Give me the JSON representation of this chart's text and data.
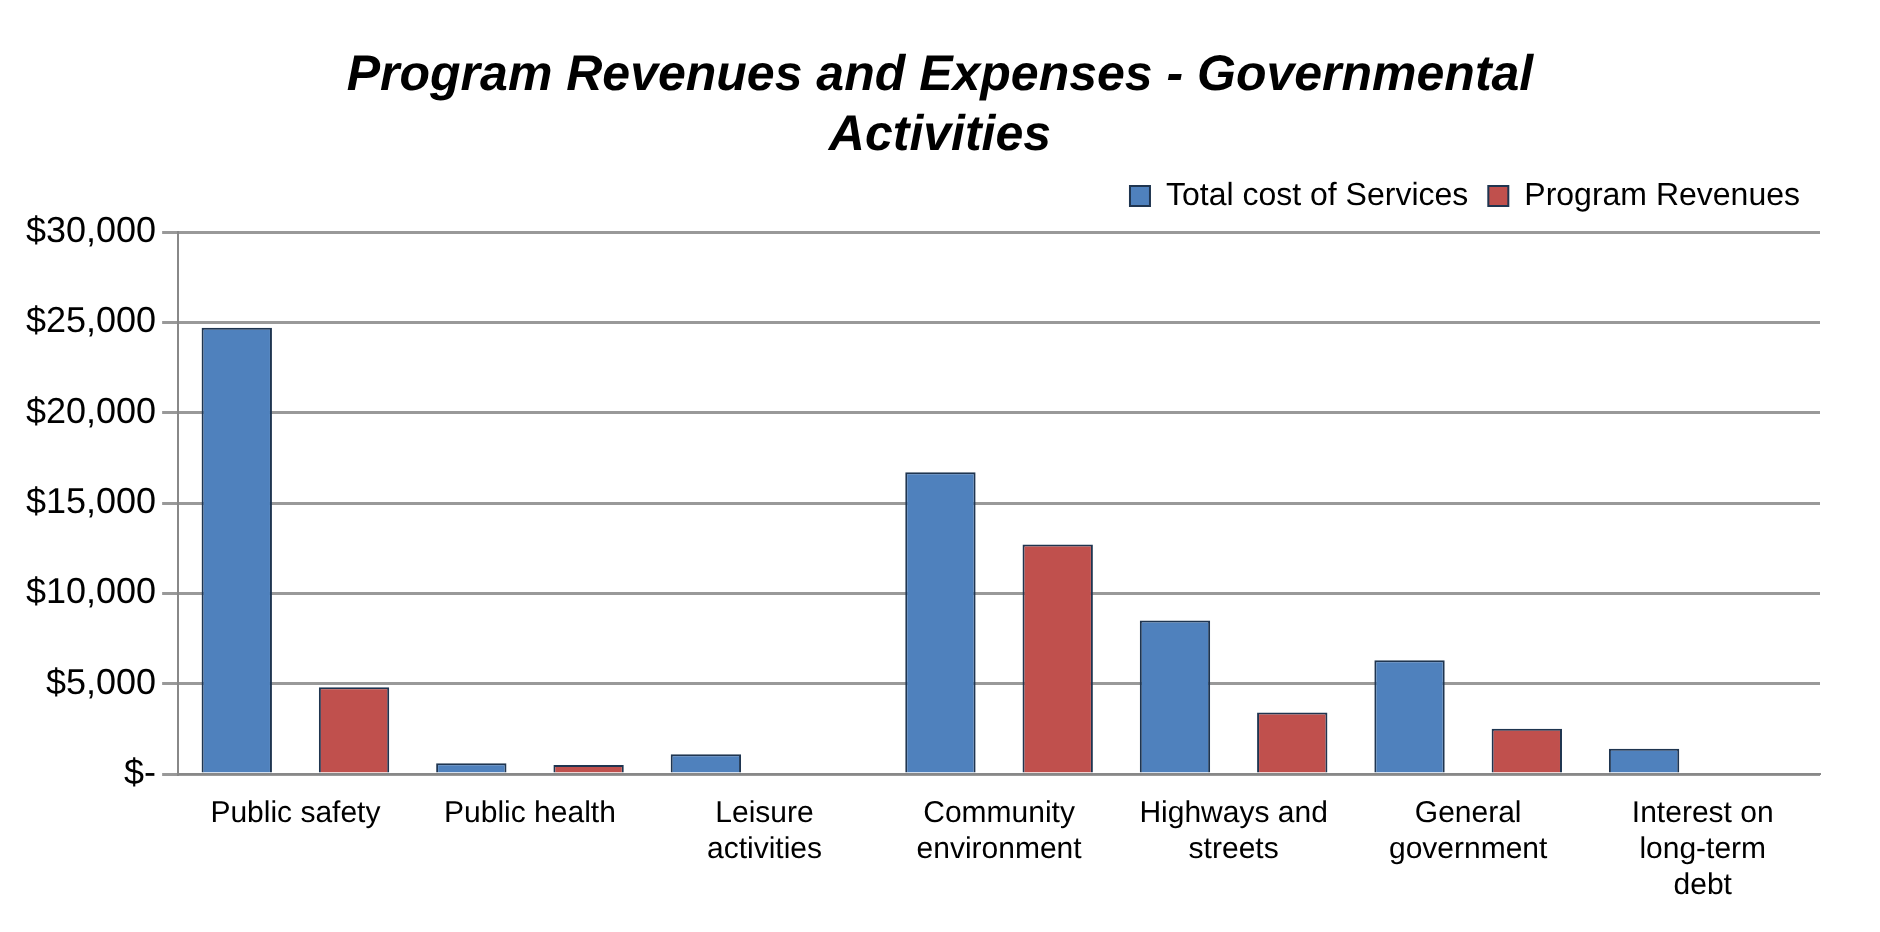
{
  "chart_data": {
    "type": "bar",
    "title": "Program Revenues and Expenses - Governmental Activities",
    "categories": [
      "Public safety",
      "Public health",
      "Leisure activities",
      "Community environment",
      "Highways and streets",
      "General government",
      "Interest on long-term debt"
    ],
    "series": [
      {
        "name": "Total cost of Services",
        "color": "#4f81bd",
        "values": [
          24700,
          600,
          1100,
          16700,
          8500,
          6300,
          1400
        ]
      },
      {
        "name": "Program Revenues",
        "color": "#c0504d",
        "values": [
          4800,
          500,
          0,
          12700,
          3400,
          2500,
          0
        ]
      }
    ],
    "ylim": [
      0,
      30000
    ],
    "yticks": [
      {
        "value": 0,
        "label": "$-"
      },
      {
        "value": 5000,
        "label": "$5,000"
      },
      {
        "value": 10000,
        "label": "$10,000"
      },
      {
        "value": 15000,
        "label": "$15,000"
      },
      {
        "value": 20000,
        "label": "$20,000"
      },
      {
        "value": 25000,
        "label": "$25,000"
      },
      {
        "value": 30000,
        "label": "$30,000"
      }
    ],
    "grid": "y",
    "legend": "top right"
  }
}
